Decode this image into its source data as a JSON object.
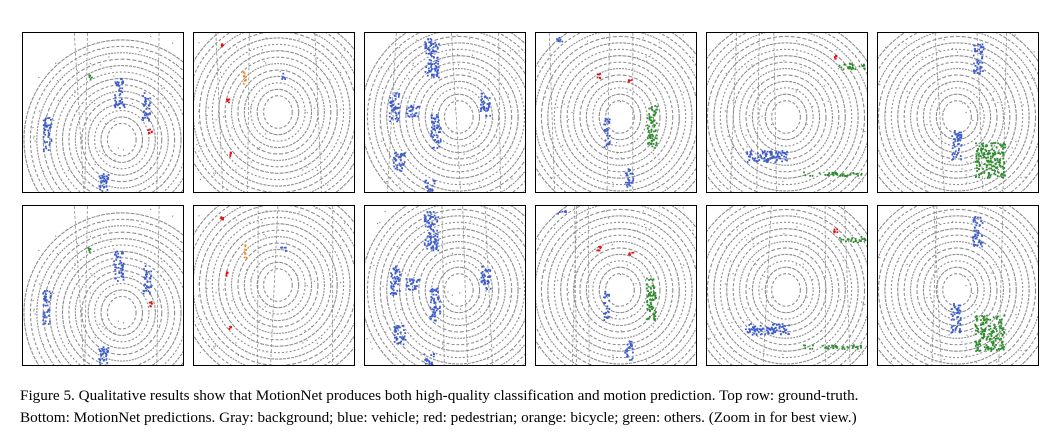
{
  "colors": {
    "background": "#8c8c8c",
    "vehicle": "#3d5ccc",
    "pedestrian": "#e01414",
    "bicycle": "#f08c1e",
    "others": "#2e8b2e"
  },
  "figure": {
    "rows": [
      {
        "name": "ground-truth",
        "panels": [
          "scene-1",
          "scene-2",
          "scene-3",
          "scene-4",
          "scene-5",
          "scene-6"
        ]
      },
      {
        "name": "prediction",
        "panels": [
          "scene-1",
          "scene-2",
          "scene-3",
          "scene-4",
          "scene-5",
          "scene-6"
        ]
      }
    ]
  },
  "caption": {
    "label": "Figure 5.",
    "line1": " Qualitative results show that MotionNet produces both high-quality classification and motion prediction. Top row: ground-truth.",
    "line2": "Bottom: MotionNet predictions. Gray: background; blue: vehicle; red: pedestrian; orange: bicycle; green: others. (Zoom in for best view.)"
  }
}
